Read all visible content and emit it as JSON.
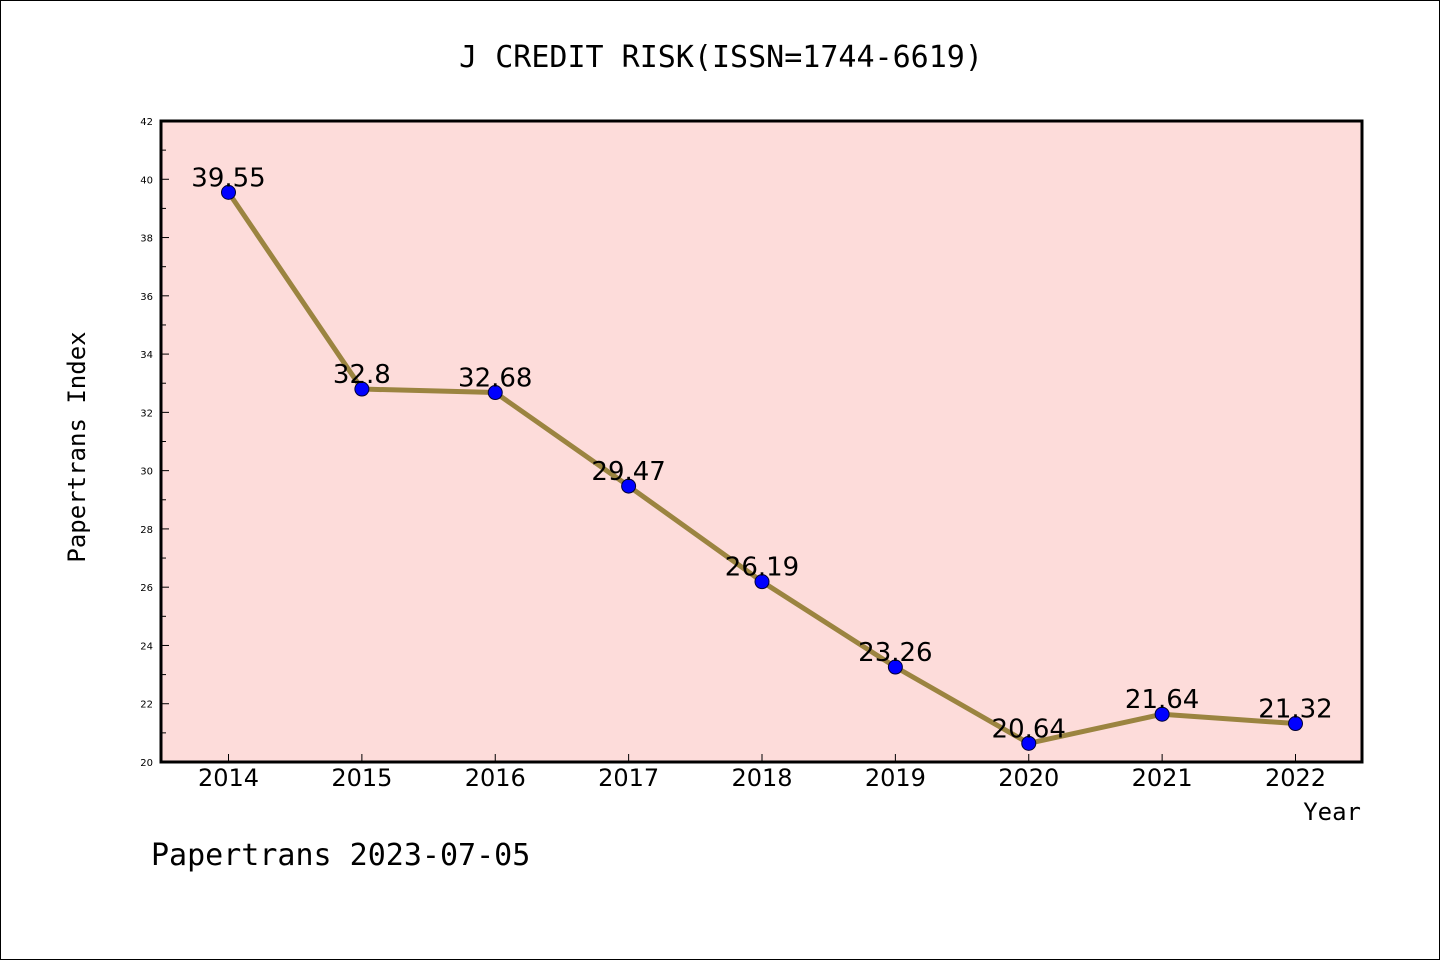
{
  "chart_data": {
    "type": "line",
    "title": "J CREDIT RISK(ISSN=1744-6619)",
    "xlabel": "Year",
    "ylabel": "Papertrans Index",
    "categories": [
      "2014",
      "2015",
      "2016",
      "2017",
      "2018",
      "2019",
      "2020",
      "2021",
      "2022"
    ],
    "series": [
      {
        "values": [
          39.55,
          32.8,
          32.68,
          29.47,
          26.19,
          23.26,
          20.64,
          21.64,
          21.32
        ],
        "labels": [
          "39.55",
          "32.8",
          "32.68",
          "29.47",
          "26.19",
          "23.26",
          "20.64",
          "21.64",
          "21.32"
        ]
      }
    ],
    "ylim": [
      20,
      42
    ],
    "yticks": [
      "20",
      "22",
      "24",
      "26",
      "28",
      "30",
      "32",
      "34",
      "36",
      "38",
      "40",
      "42"
    ],
    "grid": false,
    "colors": {
      "plot_background": "#fddcda",
      "line": "#9b8440",
      "marker": "#0000ff"
    },
    "footer": "Papertrans 2023-07-05"
  }
}
